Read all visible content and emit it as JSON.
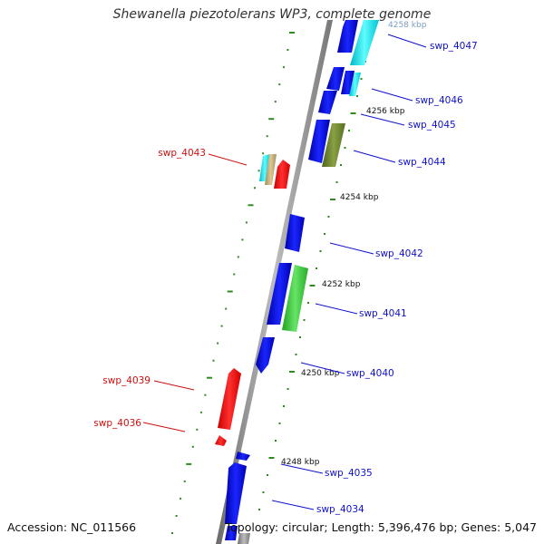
{
  "title": "Shewanella piezotolerans WP3, complete genome",
  "accession": "Accession: NC_011566",
  "topology": "Topology: circular; Length: 5,396,476 bp; Genes: 5,047",
  "colors": {
    "backbone": "#888888",
    "tick": "#2e8b20",
    "forward_label": "#1010cc",
    "reverse_label": "#cc1010",
    "blue": "#0a14e6",
    "cyan": "#00e5e5",
    "olive": "#6f8a2e",
    "green": "#3fcf3f",
    "red": "#ff0d0d",
    "tan": "#c8b07a"
  },
  "kbp_labels": [
    "4248 kbp",
    "4250 kbp",
    "4252 kbp",
    "4254 kbp",
    "4256 kbp",
    "4258 kbp"
  ],
  "forward_gene_labels": [
    "swp_4047",
    "swp_4046",
    "swp_4045",
    "swp_4044",
    "swp_4042",
    "swp_4041",
    "swp_4040",
    "swp_4035",
    "swp_4034"
  ],
  "reverse_gene_labels": [
    "swp_4043",
    "swp_4039",
    "swp_4036"
  ]
}
